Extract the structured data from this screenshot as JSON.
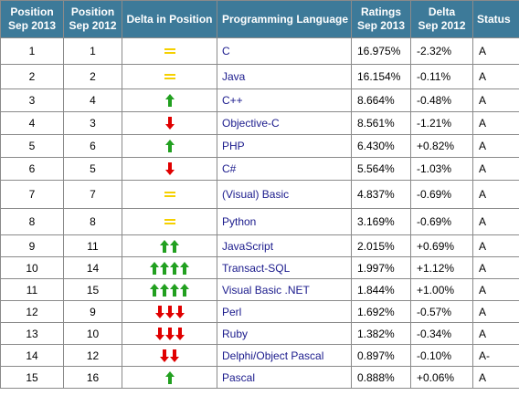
{
  "headers": {
    "pos2013": [
      "Position",
      "Sep 2013"
    ],
    "pos2012": [
      "Position",
      "Sep 2012"
    ],
    "delta_pos": "Delta in Position",
    "language": "Programming Language",
    "ratings": [
      "Ratings",
      "Sep 2013"
    ],
    "delta": [
      "Delta",
      "Sep 2012"
    ],
    "status": "Status"
  },
  "colors": {
    "header_bg": "#3d7a99",
    "up_arrow": "#22a020",
    "down_arrow": "#e00000",
    "equal": "#f5d000",
    "link": "#1a1a8c"
  },
  "rows": [
    {
      "pos2013": "1",
      "pos2012": "1",
      "change": {
        "dir": "equal",
        "count": 0
      },
      "language": "C",
      "rating": "16.975%",
      "delta": "-2.32%",
      "status": "A"
    },
    {
      "pos2013": "2",
      "pos2012": "2",
      "change": {
        "dir": "equal",
        "count": 0
      },
      "language": "Java",
      "rating": "16.154%",
      "delta": "-0.11%",
      "status": "A"
    },
    {
      "pos2013": "3",
      "pos2012": "4",
      "change": {
        "dir": "up",
        "count": 1
      },
      "language": "C++",
      "rating": "8.664%",
      "delta": "-0.48%",
      "status": "A"
    },
    {
      "pos2013": "4",
      "pos2012": "3",
      "change": {
        "dir": "down",
        "count": 1
      },
      "language": "Objective-C",
      "rating": "8.561%",
      "delta": "-1.21%",
      "status": "A"
    },
    {
      "pos2013": "5",
      "pos2012": "6",
      "change": {
        "dir": "up",
        "count": 1
      },
      "language": "PHP",
      "rating": "6.430%",
      "delta": "+0.82%",
      "status": "A"
    },
    {
      "pos2013": "6",
      "pos2012": "5",
      "change": {
        "dir": "down",
        "count": 1
      },
      "language": "C#",
      "rating": "5.564%",
      "delta": "-1.03%",
      "status": "A"
    },
    {
      "pos2013": "7",
      "pos2012": "7",
      "change": {
        "dir": "equal",
        "count": 0
      },
      "language": "(Visual) Basic",
      "rating": "4.837%",
      "delta": "-0.69%",
      "status": "A"
    },
    {
      "pos2013": "8",
      "pos2012": "8",
      "change": {
        "dir": "equal",
        "count": 0
      },
      "language": "Python",
      "rating": "3.169%",
      "delta": "-0.69%",
      "status": "A"
    },
    {
      "pos2013": "9",
      "pos2012": "11",
      "change": {
        "dir": "up",
        "count": 2
      },
      "language": "JavaScript",
      "rating": "2.015%",
      "delta": "+0.69%",
      "status": "A"
    },
    {
      "pos2013": "10",
      "pos2012": "14",
      "change": {
        "dir": "up",
        "count": 4
      },
      "language": "Transact-SQL",
      "rating": "1.997%",
      "delta": "+1.12%",
      "status": "A"
    },
    {
      "pos2013": "11",
      "pos2012": "15",
      "change": {
        "dir": "up",
        "count": 4
      },
      "language": "Visual Basic .NET",
      "rating": "1.844%",
      "delta": "+1.00%",
      "status": "A"
    },
    {
      "pos2013": "12",
      "pos2012": "9",
      "change": {
        "dir": "down",
        "count": 3
      },
      "language": "Perl",
      "rating": "1.692%",
      "delta": "-0.57%",
      "status": "A"
    },
    {
      "pos2013": "13",
      "pos2012": "10",
      "change": {
        "dir": "down",
        "count": 3
      },
      "language": "Ruby",
      "rating": "1.382%",
      "delta": "-0.34%",
      "status": "A"
    },
    {
      "pos2013": "14",
      "pos2012": "12",
      "change": {
        "dir": "down",
        "count": 2
      },
      "language": "Delphi/Object Pascal",
      "rating": "0.897%",
      "delta": "-0.10%",
      "status": "A-"
    },
    {
      "pos2013": "15",
      "pos2012": "16",
      "change": {
        "dir": "up",
        "count": 1
      },
      "language": "Pascal",
      "rating": "0.888%",
      "delta": "+0.06%",
      "status": "A"
    }
  ]
}
